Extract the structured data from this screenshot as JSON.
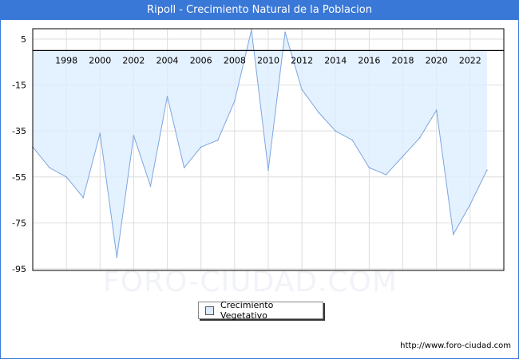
{
  "header": {
    "title": "Ripoll - Crecimiento Natural de la Poblacion"
  },
  "watermark": "FORO-CIUDAD.COM",
  "footer": {
    "url": "http://www.foro-ciudad.com"
  },
  "chart_data": {
    "type": "area",
    "title": "Ripoll - Crecimiento Natural de la Poblacion",
    "x": [
      1996,
      1997,
      1998,
      1999,
      2000,
      2001,
      2002,
      2003,
      2004,
      2005,
      2006,
      2007,
      2008,
      2009,
      2010,
      2011,
      2012,
      2013,
      2014,
      2015,
      2016,
      2017,
      2018,
      2019,
      2020,
      2021,
      2022,
      2023
    ],
    "series": [
      {
        "name": "Crecimiento Vegetativo",
        "values": [
          -42,
          -51,
          -55,
          -64,
          -36,
          -90,
          -37,
          -59,
          -20,
          -51,
          -42,
          -39,
          -22,
          9,
          -52,
          8,
          -17,
          -27,
          -35,
          -39,
          -51,
          -54,
          -46,
          -38,
          -26,
          -80,
          -67,
          -52
        ]
      }
    ],
    "xticks": [
      "1998",
      "2000",
      "2002",
      "2004",
      "2006",
      "2008",
      "2010",
      "2012",
      "2014",
      "2016",
      "2018",
      "2020",
      "2022"
    ],
    "yticks": [
      "5",
      "-15",
      "-35",
      "-55",
      "-75",
      "-95"
    ],
    "ylim": [
      -95,
      9.5
    ],
    "xlim": [
      1996,
      2024
    ],
    "grid": true,
    "legend": "bottom-center",
    "colors": {
      "fill": "#ddeeff",
      "line": "#7da6e0",
      "header": "#3a78d8"
    }
  }
}
